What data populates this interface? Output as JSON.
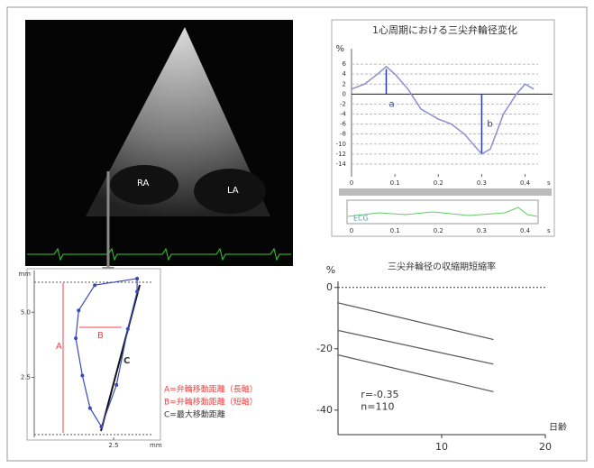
{
  "echo_image": {
    "labels": [
      "RA",
      "LA"
    ]
  },
  "chart_data": [
    {
      "type": "line",
      "title": "1心周期における三尖弁輪径変化",
      "y_label": "%",
      "x_label": "s",
      "x": [
        0,
        0.03,
        0.06,
        0.08,
        0.1,
        0.13,
        0.16,
        0.2,
        0.23,
        0.26,
        0.3,
        0.32,
        0.35,
        0.38,
        0.4,
        0.42
      ],
      "series": [
        {
          "color": "#8a8fd0",
          "values": [
            1,
            2,
            4,
            5.5,
            4,
            1,
            -3,
            -5,
            -6,
            -8,
            -12,
            -11,
            -4,
            0,
            2,
            1
          ]
        }
      ],
      "xlim": [
        0,
        0.43
      ],
      "ylim": [
        -16,
        8
      ],
      "xticks": [
        0,
        0.1,
        0.2,
        0.3,
        0.4
      ],
      "yticks": [
        6,
        4,
        2,
        0,
        -2,
        -4,
        -6,
        -8,
        -10,
        -12,
        -14
      ],
      "grid": true,
      "reference_line": 0,
      "annotations": [
        "a",
        "b"
      ],
      "inset_label": "ECG"
    },
    {
      "type": "line",
      "title": "三尖弁輪径の収縮期短縮率",
      "y_label": "%",
      "x_label": "日齢",
      "x": [
        0,
        15
      ],
      "series": [
        {
          "color": "#555555",
          "values": [
            -5,
            -17
          ]
        },
        {
          "color": "#555555",
          "values": [
            -14,
            -25
          ]
        },
        {
          "color": "#555555",
          "values": [
            -22,
            -34
          ]
        }
      ],
      "xlim": [
        0,
        20
      ],
      "ylim": [
        -48,
        2
      ],
      "xticks": [
        10,
        20
      ],
      "yticks": [
        0,
        -20,
        -40
      ],
      "grid": false,
      "reference_line": 0,
      "annotations": [
        "r=-0.35",
        "n=110"
      ]
    },
    {
      "type": "line",
      "y_label": "mm",
      "x_label": "mm",
      "x": [
        3.39,
        1.79,
        1.18,
        1.07,
        1.32,
        1.61,
        2.04,
        2.61,
        3.04,
        3.39,
        3.39
      ],
      "series": [
        {
          "color": "#3a49b8",
          "values": [
            6.29,
            6.04,
            5.07,
            4.0,
            2.57,
            1.32,
            0.61,
            2.21,
            4.36,
            5.79,
            6.29
          ]
        }
      ],
      "xlim": [
        -0.5,
        4
      ],
      "ylim": [
        0.2,
        6.6
      ],
      "xticks": [
        2.5
      ],
      "yticks": [
        {
          "value": 5,
          "label": "5.0"
        },
        2.5
      ],
      "grid": false,
      "markers": true,
      "annotations": [
        "A",
        "B",
        "C"
      ],
      "legend_text": [
        "A=弁輪移動距離（長軸）",
        "B=弁輪移動距離（短軸）",
        "C=最大移動距離"
      ]
    }
  ]
}
